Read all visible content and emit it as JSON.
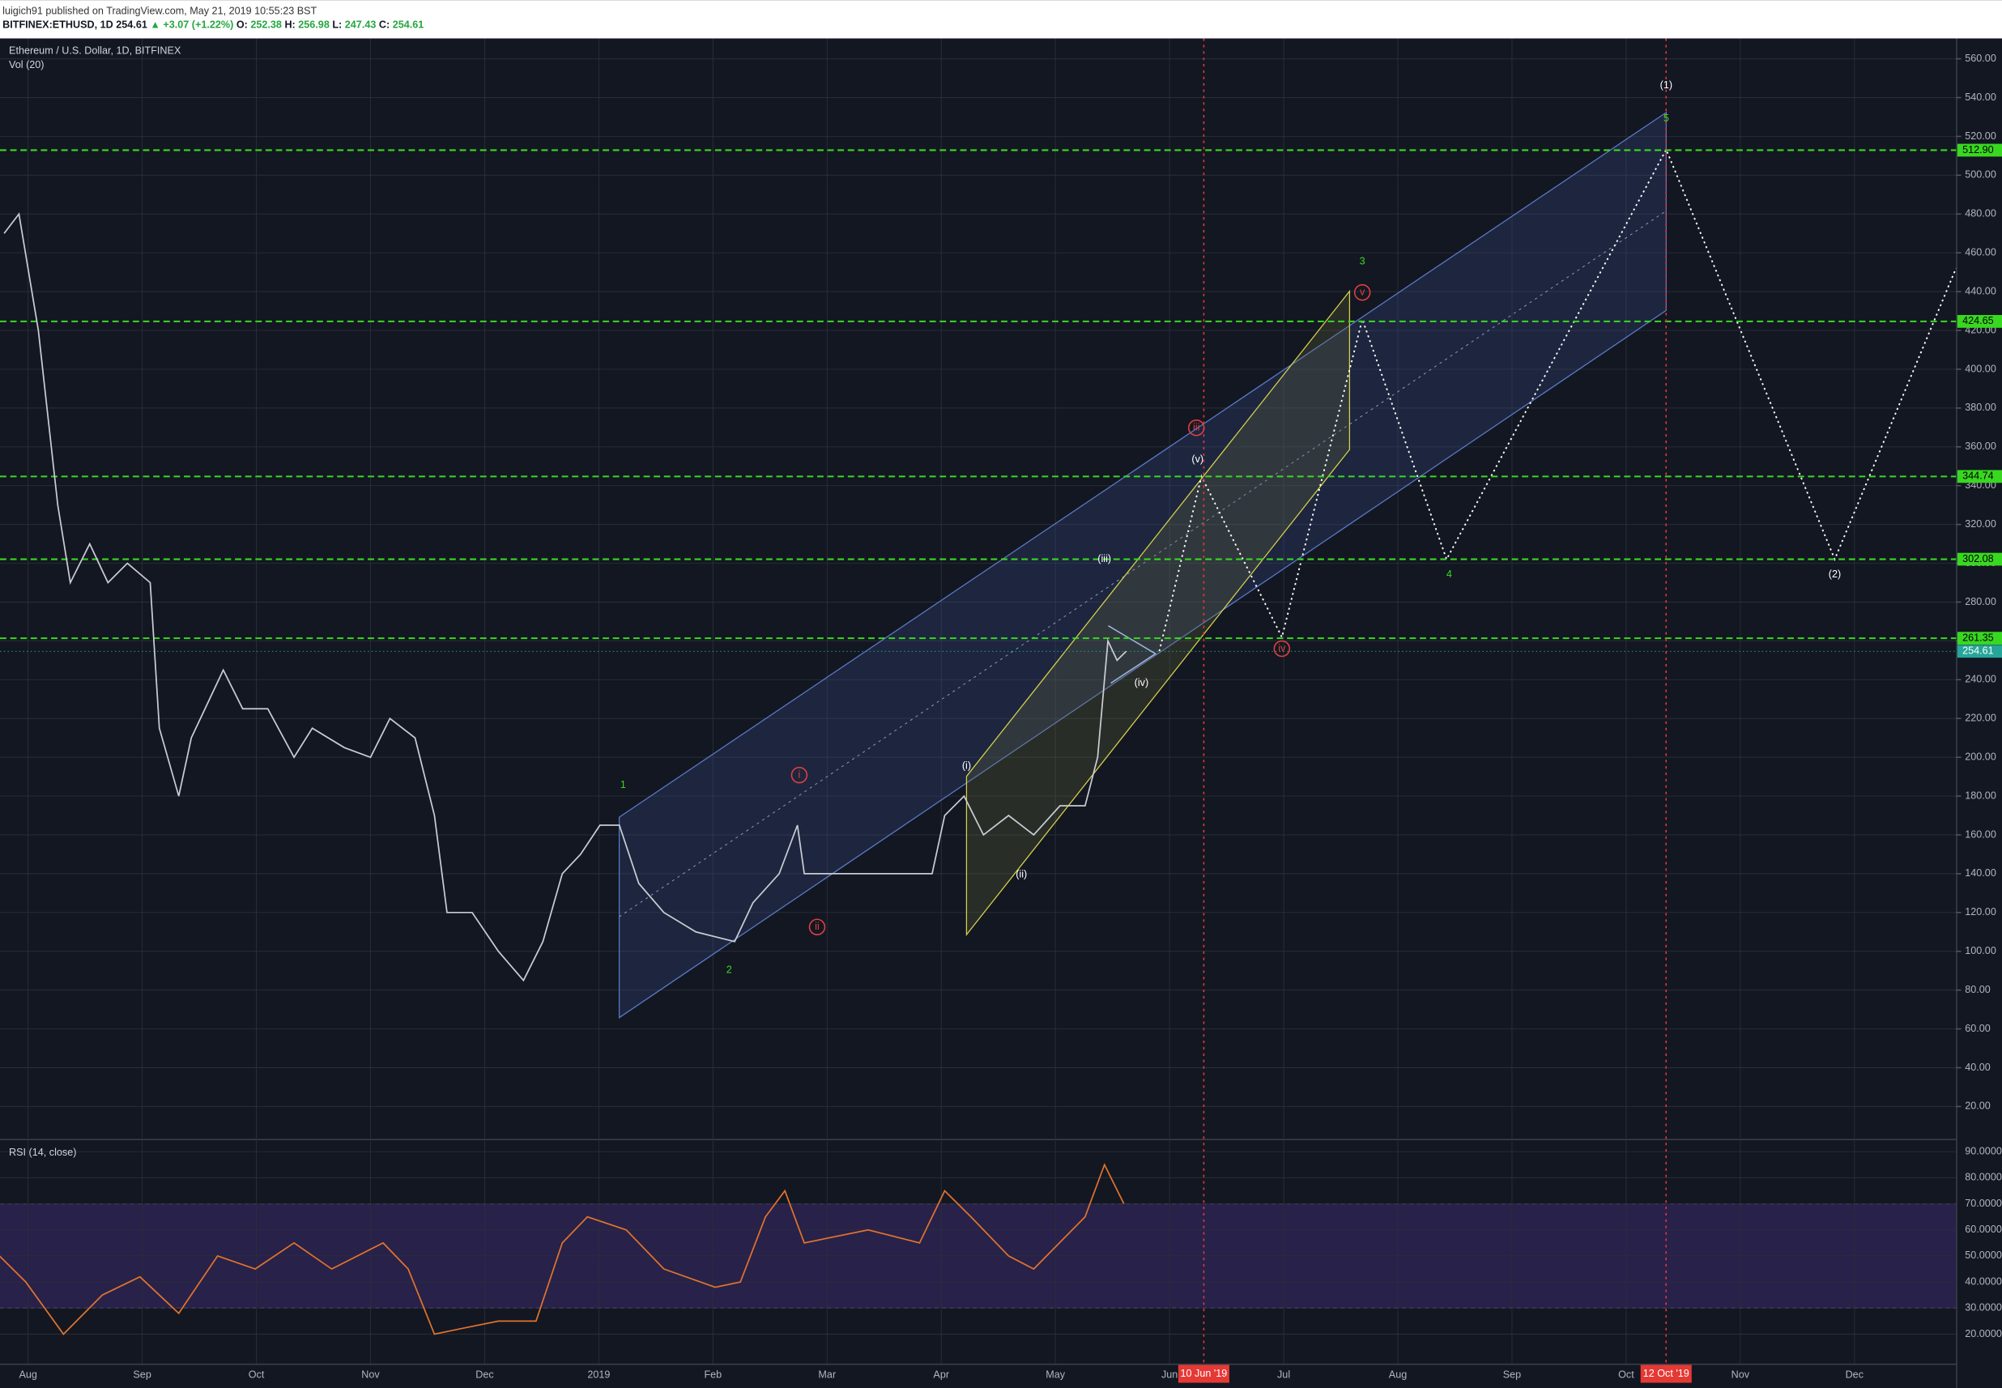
{
  "header": {
    "byline": "luigich91 published on TradingView.com, May 21, 2019 10:55:23 BST",
    "symbol": "BITFINEX:ETHUSD, 1D",
    "price": "254.61",
    "change": "▲ +3.07 (+1.22%)",
    "ohlc": [
      {
        "label": "O:",
        "value": "252.38"
      },
      {
        "label": "H:",
        "value": "256.98"
      },
      {
        "label": "L:",
        "value": "247.43"
      },
      {
        "label": "C:",
        "value": "254.61"
      }
    ]
  },
  "chart": {
    "legend": "Ethereum / U.S. Dollar, 1D, BITFINEX",
    "volume_legend": "Vol (20)",
    "rsi_legend": "RSI (14, close)",
    "xlim": [
      -0.246,
      16.89
    ],
    "ylim": [
      3.3,
      570.5
    ],
    "rsi_ylim": [
      8.7,
      94.4
    ],
    "xticks": [
      {
        "value": 0,
        "label": "Aug"
      },
      {
        "value": 1,
        "label": "Sep"
      },
      {
        "value": 2,
        "label": "Oct"
      },
      {
        "value": 3,
        "label": "Nov"
      },
      {
        "value": 4,
        "label": "Dec"
      },
      {
        "value": 5,
        "label": "2019"
      },
      {
        "value": 6,
        "label": "Feb"
      },
      {
        "value": 7,
        "label": "Mar"
      },
      {
        "value": 8,
        "label": "Apr"
      },
      {
        "value": 9,
        "label": "May"
      },
      {
        "value": 10,
        "label": "Jun"
      },
      {
        "value": 11,
        "label": "Jul"
      },
      {
        "value": 12,
        "label": "Aug"
      },
      {
        "value": 13,
        "label": "Sep"
      },
      {
        "value": 14,
        "label": "Oct"
      },
      {
        "value": 15,
        "label": "Nov"
      },
      {
        "value": 16,
        "label": "Dec"
      }
    ],
    "yticks": [
      {
        "value": 560,
        "label": "560.00"
      },
      {
        "value": 540,
        "label": "540.00"
      },
      {
        "value": 520,
        "label": "520.00"
      },
      {
        "value": 500,
        "label": "500.00"
      },
      {
        "value": 480,
        "label": "480.00"
      },
      {
        "value": 460,
        "label": "460.00"
      },
      {
        "value": 440,
        "label": "440.00"
      },
      {
        "value": 420,
        "label": "420.00"
      },
      {
        "value": 400,
        "label": "400.00"
      },
      {
        "value": 380,
        "label": "380.00"
      },
      {
        "value": 360,
        "label": "360.00"
      },
      {
        "value": 340,
        "label": "340.00"
      },
      {
        "value": 320,
        "label": "320.00"
      },
      {
        "value": 300,
        "label": "300.00"
      },
      {
        "value": 280,
        "label": "280.00"
      },
      {
        "value": 260,
        "label": "260.00"
      },
      {
        "value": 240,
        "label": "240.00"
      },
      {
        "value": 220,
        "label": "220.00"
      },
      {
        "value": 200,
        "label": "200.00"
      },
      {
        "value": 180,
        "label": "180.00"
      },
      {
        "value": 160,
        "label": "160.00"
      },
      {
        "value": 140,
        "label": "140.00"
      },
      {
        "value": 120,
        "label": "120.00"
      },
      {
        "value": 100,
        "label": "100.00"
      },
      {
        "value": 80,
        "label": "80.00"
      },
      {
        "value": 60,
        "label": "60.00"
      },
      {
        "value": 40,
        "label": "40.00"
      },
      {
        "value": 20,
        "label": "20.00"
      }
    ],
    "rsi_yticks": [
      {
        "value": 90,
        "label": "90.0000"
      },
      {
        "value": 80,
        "label": "80.0000"
      },
      {
        "value": 70,
        "label": "70.0000"
      },
      {
        "value": 60,
        "label": "60.0000"
      },
      {
        "value": 50,
        "label": "50.0000"
      },
      {
        "value": 40,
        "label": "40.0000"
      },
      {
        "value": 30,
        "label": "30.0000"
      },
      {
        "value": 20,
        "label": "20.0000"
      }
    ],
    "rsi_band": [
      30,
      70
    ],
    "levels": [
      {
        "value": 512.9,
        "label": "512.90"
      },
      {
        "value": 424.65,
        "label": "424.65"
      },
      {
        "value": 344.74,
        "label": "344.74"
      },
      {
        "value": 302.08,
        "label": "302.08"
      },
      {
        "value": 261.35,
        "label": "261.35"
      }
    ],
    "level_color": "#39d820",
    "last_price": {
      "value": 254.61,
      "label": "254.61"
    },
    "time_markers": [
      {
        "value": 10.3,
        "label": "10 Jun '19"
      },
      {
        "value": 14.35,
        "label": "12 Oct '19"
      }
    ],
    "price": {
      "color": "#c9ccd4",
      "x": [
        -0.21,
        -0.08,
        0.09,
        0.26,
        0.37,
        0.54,
        0.7,
        0.87,
        1.07,
        1.15,
        1.32,
        1.43,
        1.71,
        1.88,
        2.1,
        2.33,
        2.49,
        2.77,
        3.0,
        3.17,
        3.39,
        3.56,
        3.67,
        3.89,
        4.12,
        4.34,
        4.51,
        4.68,
        4.84,
        5.01,
        5.18,
        5.35,
        5.57,
        5.85,
        6.19,
        6.35,
        6.58,
        6.74,
        6.8,
        7.14,
        7.58,
        7.92,
        8.03,
        8.2,
        8.37,
        8.59,
        8.81,
        9.04,
        9.26,
        9.37,
        9.46,
        9.54,
        9.62
      ],
      "values": [
        470,
        480,
        420,
        330,
        290,
        310,
        290,
        300,
        290,
        215,
        180,
        210,
        245,
        225,
        225,
        200,
        215,
        205,
        200,
        220,
        210,
        170,
        120,
        120,
        100,
        85,
        105,
        140,
        150,
        165,
        165,
        135,
        120,
        110,
        105,
        125,
        140,
        165,
        140,
        140,
        140,
        140,
        170,
        180,
        160,
        170,
        160,
        175,
        175,
        200,
        260,
        250,
        254.61
      ]
    },
    "rsi": {
      "color": "#e0732c",
      "x": [
        -0.25,
        -0.02,
        0.31,
        0.65,
        0.98,
        1.32,
        1.66,
        1.99,
        2.33,
        2.66,
        3.11,
        3.33,
        3.56,
        3.78,
        4.12,
        4.45,
        4.68,
        4.9,
        5.24,
        5.57,
        6.02,
        6.24,
        6.46,
        6.63,
        6.8,
        7.36,
        7.81,
        8.03,
        8.26,
        8.59,
        8.81,
        9.26,
        9.43,
        9.6
      ],
      "values": [
        50,
        40,
        20,
        35,
        42,
        28,
        50,
        45,
        55,
        45,
        55,
        45,
        20,
        22,
        25,
        25,
        55,
        65,
        60,
        45,
        38,
        40,
        65,
        75,
        55,
        60,
        55,
        75,
        65,
        50,
        45,
        65,
        85,
        70
      ]
    },
    "wave_labels": [
      {
        "text": "(1)",
        "color": "#ffffff"
      },
      {
        "text": "5",
        "color": "#39d820"
      },
      {
        "text": "3",
        "color": "#39d820"
      },
      {
        "text": "4",
        "color": "#39d820"
      },
      {
        "text": "(2)",
        "color": "#ffffff"
      },
      {
        "text": "1",
        "color": "#39d820"
      },
      {
        "text": "2",
        "color": "#39d820"
      },
      {
        "text": "i",
        "color": "#e04040"
      },
      {
        "text": "ii",
        "color": "#e04040"
      },
      {
        "text": "iii",
        "color": "#e04040"
      },
      {
        "text": "iv",
        "color": "#e04040"
      },
      {
        "text": "v",
        "color": "#e04040"
      },
      {
        "text": "(i)",
        "color": "#ffffff"
      },
      {
        "text": "(ii)",
        "color": "#ffffff"
      },
      {
        "text": "(iii)",
        "color": "#ffffff"
      },
      {
        "text": "(iv)",
        "color": "#ffffff"
      },
      {
        "text": "(v)",
        "color": "#ffffff"
      }
    ]
  }
}
